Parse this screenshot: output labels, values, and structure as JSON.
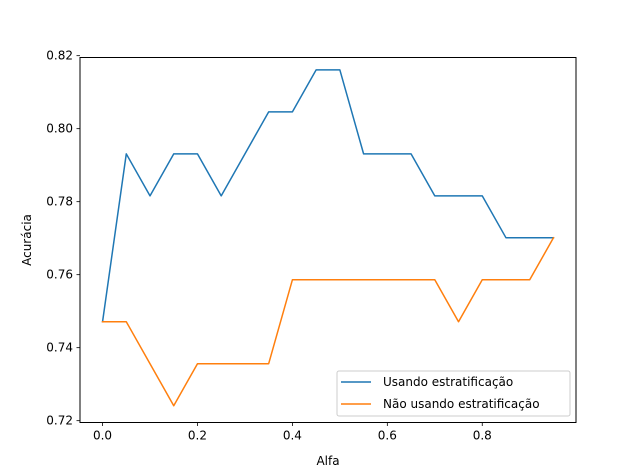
{
  "chart_data": {
    "type": "line",
    "title": "",
    "xlabel": "Alfa",
    "ylabel": "Acurácia",
    "xlim": [
      -0.0475,
      0.9975
    ],
    "ylim": [
      0.7195,
      0.8195
    ],
    "xticks": [
      0.0,
      0.2,
      0.4,
      0.6,
      0.8
    ],
    "xtick_labels": [
      "0.0",
      "0.2",
      "0.4",
      "0.6",
      "0.8"
    ],
    "yticks": [
      0.72,
      0.74,
      0.76,
      0.78,
      0.8,
      0.82
    ],
    "ytick_labels": [
      "0.72",
      "0.74",
      "0.76",
      "0.78",
      "0.80",
      "0.82"
    ],
    "grid": false,
    "legend_position": "lower-right",
    "x": [
      0.0,
      0.05,
      0.1,
      0.15,
      0.2,
      0.25,
      0.3,
      0.35,
      0.4,
      0.45,
      0.5,
      0.55,
      0.6,
      0.65,
      0.7,
      0.75,
      0.8,
      0.85,
      0.9,
      0.95
    ],
    "series": [
      {
        "name": "Usando estratificação",
        "color": "#1f77b4",
        "values": [
          0.7471,
          0.7931,
          0.7816,
          0.7931,
          0.7931,
          0.7816,
          0.7931,
          0.8046,
          0.8046,
          0.8161,
          0.8161,
          0.7931,
          0.7931,
          0.7931,
          0.7816,
          0.7816,
          0.7816,
          0.7701,
          0.7701,
          0.7701
        ]
      },
      {
        "name": "Não usando estratificação",
        "color": "#ff7f0e",
        "values": [
          0.7471,
          0.7471,
          0.7356,
          0.7241,
          0.7356,
          0.7356,
          0.7356,
          0.7356,
          0.7586,
          0.7586,
          0.7586,
          0.7586,
          0.7586,
          0.7586,
          0.7586,
          0.7471,
          0.7586,
          0.7586,
          0.7586,
          0.7701
        ]
      }
    ]
  }
}
